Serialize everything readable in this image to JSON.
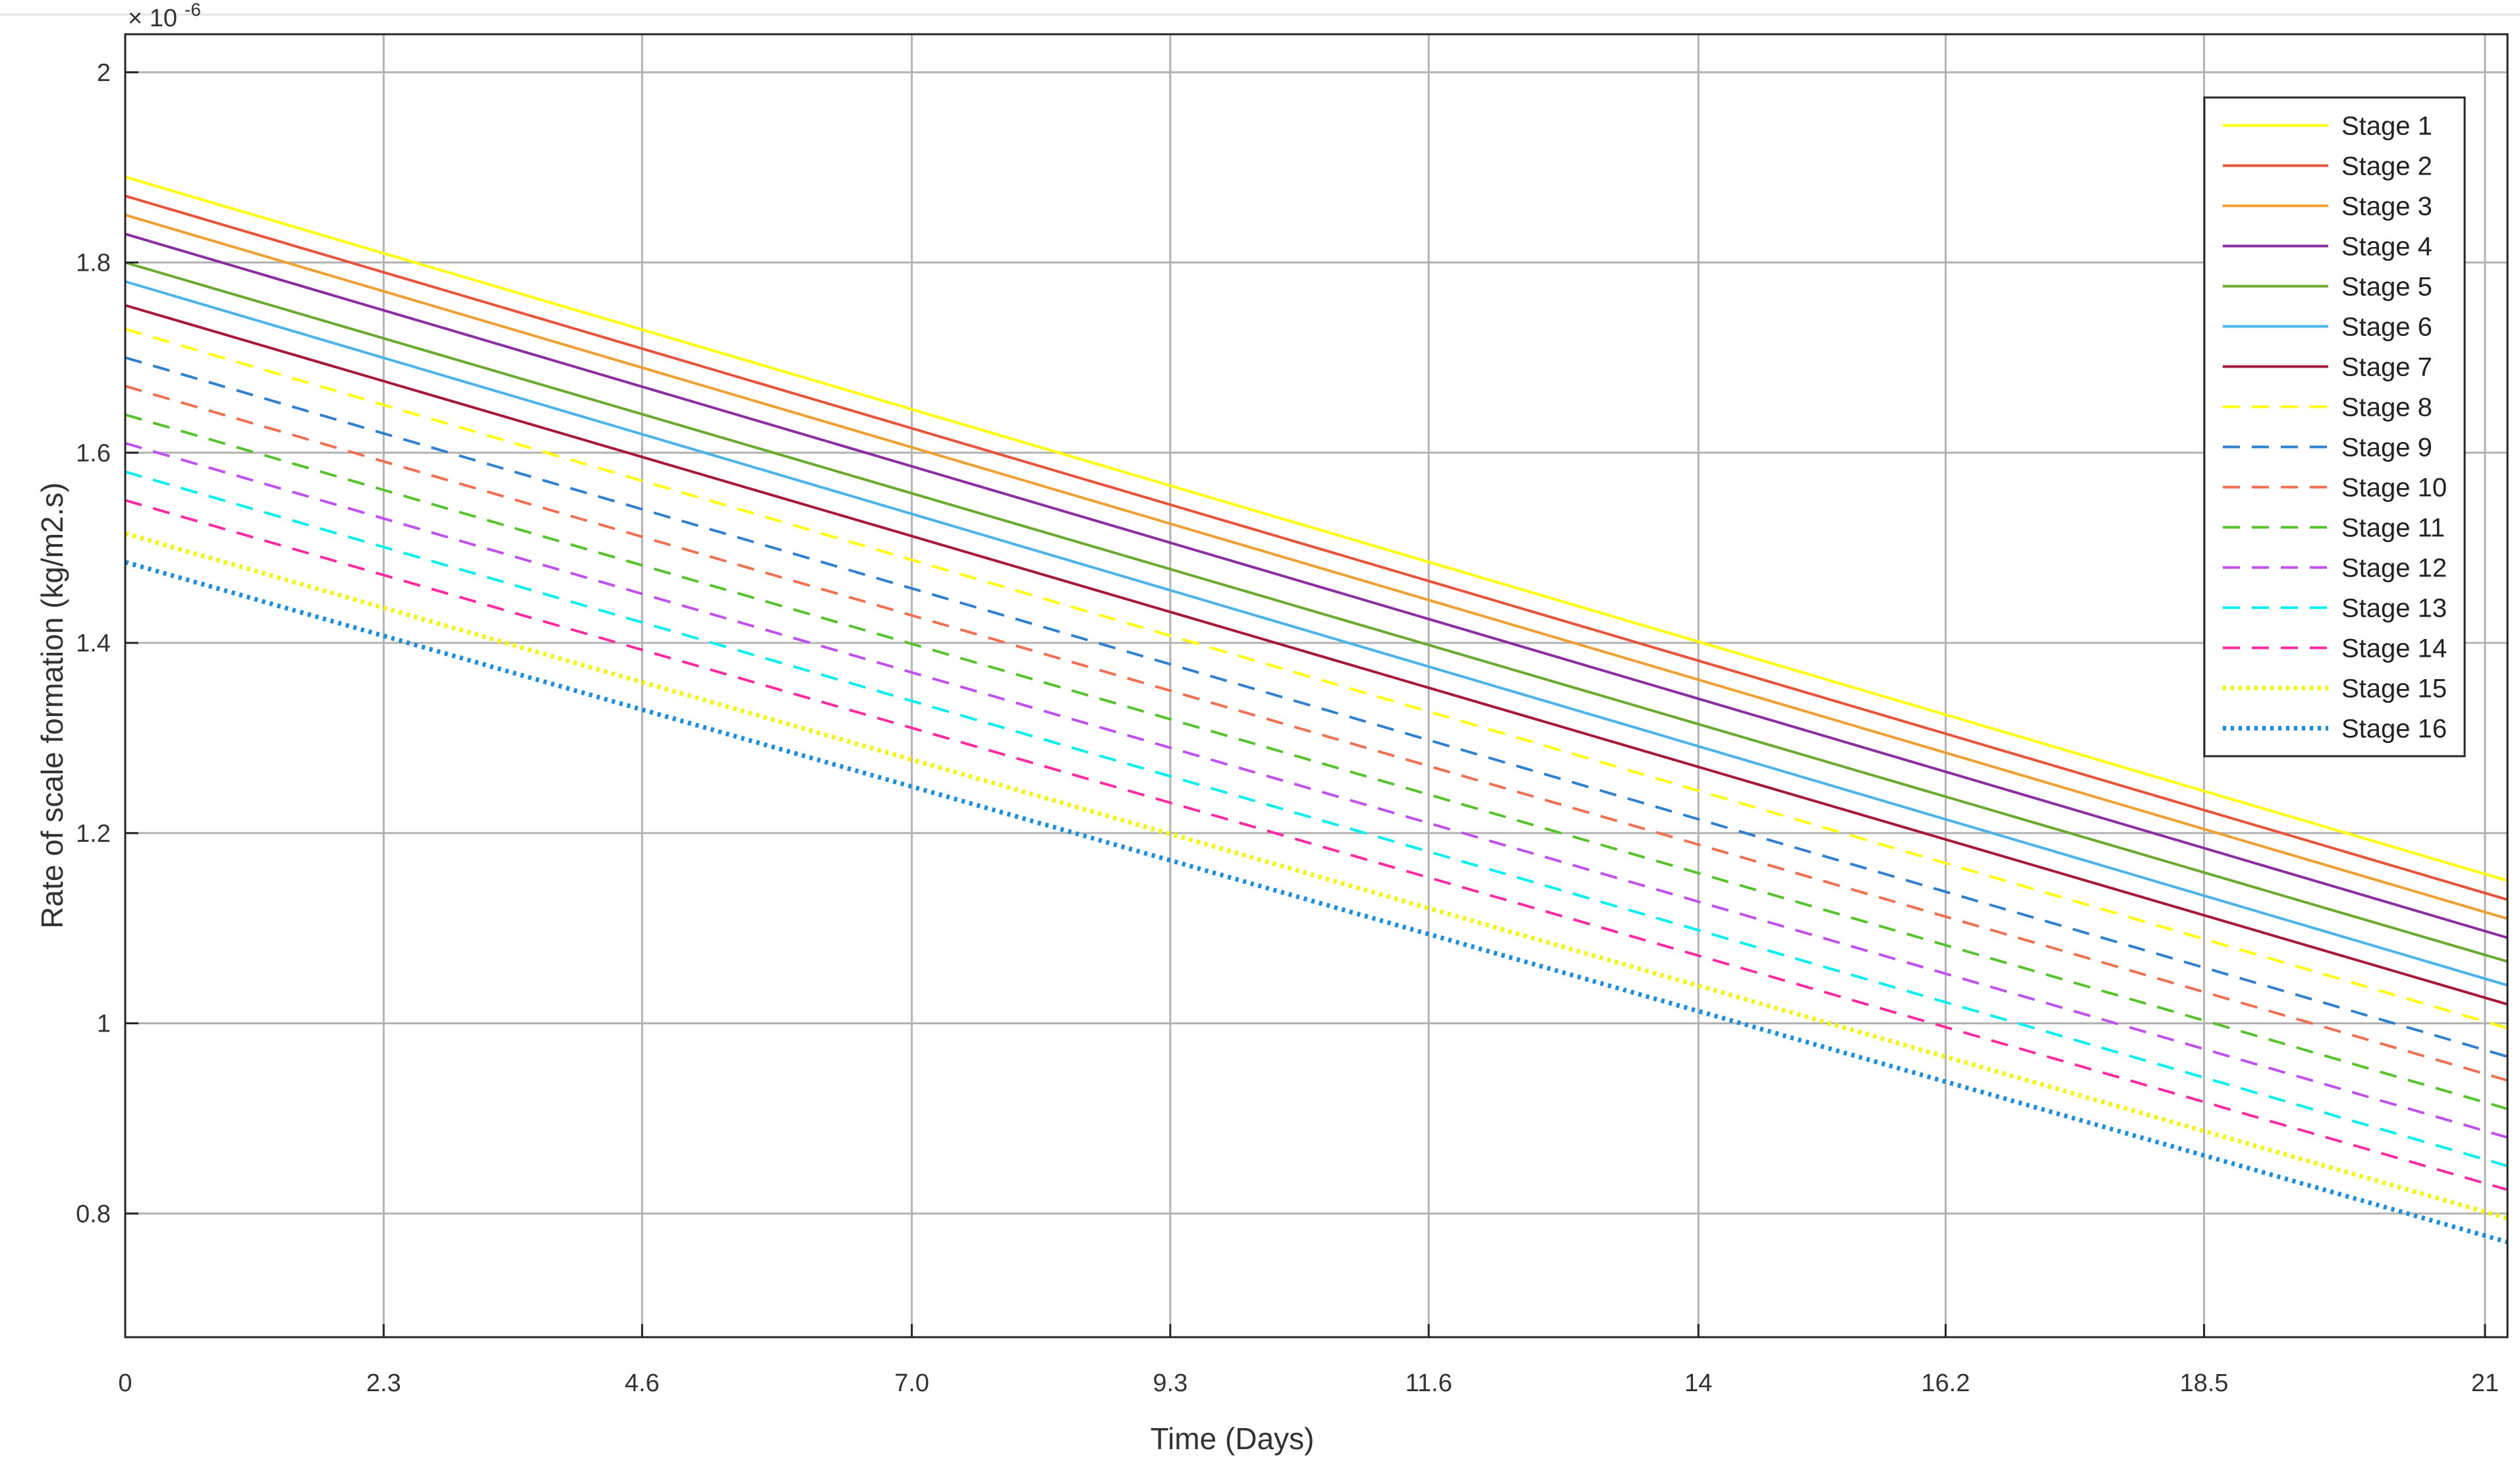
{
  "chart_data": {
    "type": "line",
    "xlabel": "Time (Days)",
    "ylabel": "Rate of scale formation (kg/m2.s)",
    "y_exponent_label": "× 10",
    "y_exponent_power": "-6",
    "xlim": [
      0,
      21.2
    ],
    "ylim": [
      0.67,
      2.04
    ],
    "x_ticks": [
      0,
      2.3,
      4.6,
      7.0,
      9.3,
      11.6,
      14,
      16.2,
      18.5,
      21
    ],
    "x_tick_labels": [
      "0",
      "2.3",
      "4.6",
      "7.0",
      "9.3",
      "11.6",
      "14",
      "16.2",
      "18.5",
      "21"
    ],
    "y_ticks": [
      0.8,
      1.0,
      1.2,
      1.4,
      1.6,
      1.8,
      2.0
    ],
    "y_tick_labels": [
      "0.8",
      "1",
      "1.2",
      "1.4",
      "1.6",
      "1.8",
      "2"
    ],
    "grid": true,
    "legend_position": "top-right",
    "x": [
      0,
      21.2
    ],
    "series": [
      {
        "name": "Stage 1",
        "color": "#ffff00",
        "style": "solid",
        "values": [
          1.89,
          1.15
        ]
      },
      {
        "name": "Stage 2",
        "color": "#e8533a",
        "style": "solid",
        "values": [
          1.87,
          1.13
        ]
      },
      {
        "name": "Stage 3",
        "color": "#f0a030",
        "style": "solid",
        "values": [
          1.85,
          1.11
        ]
      },
      {
        "name": "Stage 4",
        "color": "#8b2fa0",
        "style": "solid",
        "values": [
          1.83,
          1.09
        ]
      },
      {
        "name": "Stage 5",
        "color": "#6aaa2e",
        "style": "solid",
        "values": [
          1.8,
          1.065
        ]
      },
      {
        "name": "Stage 6",
        "color": "#4ab4e8",
        "style": "solid",
        "values": [
          1.78,
          1.04
        ]
      },
      {
        "name": "Stage 7",
        "color": "#a8183a",
        "style": "solid",
        "values": [
          1.755,
          1.02
        ]
      },
      {
        "name": "Stage 8",
        "color": "#ffff00",
        "style": "dashed",
        "values": [
          1.73,
          0.995
        ]
      },
      {
        "name": "Stage 9",
        "color": "#2f80d0",
        "style": "dashed",
        "values": [
          1.7,
          0.965
        ]
      },
      {
        "name": "Stage 10",
        "color": "#f07050",
        "style": "dashed",
        "values": [
          1.67,
          0.94
        ]
      },
      {
        "name": "Stage 11",
        "color": "#55c42a",
        "style": "dashed",
        "values": [
          1.64,
          0.91
        ]
      },
      {
        "name": "Stage 12",
        "color": "#c050f0",
        "style": "dashed",
        "values": [
          1.61,
          0.88
        ]
      },
      {
        "name": "Stage 13",
        "color": "#00f0f0",
        "style": "dashed",
        "values": [
          1.58,
          0.85
        ]
      },
      {
        "name": "Stage 14",
        "color": "#ff2aa0",
        "style": "dashed",
        "values": [
          1.55,
          0.825
        ]
      },
      {
        "name": "Stage 15",
        "color": "#f5f500",
        "style": "dotted",
        "values": [
          1.515,
          0.795
        ]
      },
      {
        "name": "Stage 16",
        "color": "#1a8fe0",
        "style": "dotted",
        "values": [
          1.485,
          0.77
        ]
      }
    ]
  }
}
